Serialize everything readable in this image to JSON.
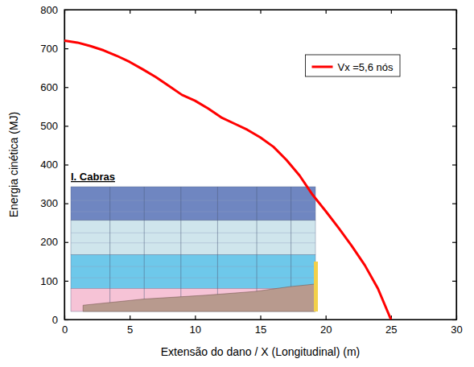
{
  "chart_data": {
    "type": "line",
    "x_label": "Extensão do dano / X (Longitudinal) (m)",
    "y_label": "Energia cinética (MJ)",
    "annotation": "I. Cabras",
    "x": [
      0,
      1,
      2,
      3,
      4,
      5,
      6,
      7,
      8,
      9,
      10,
      11,
      12,
      13,
      14,
      15,
      16,
      17,
      18,
      19,
      20,
      21,
      22,
      23,
      24,
      25
    ],
    "series": [
      {
        "name": "Vx =5,6 nós",
        "color": "#ff0000",
        "values": [
          720,
          715,
          706,
          695,
          681,
          665,
          646,
          626,
          603,
          580,
          565,
          545,
          522,
          506,
          490,
          470,
          446,
          412,
          372,
          322,
          280,
          236,
          190,
          140,
          80,
          0
        ]
      }
    ],
    "xlim": [
      0,
      30
    ],
    "xticks": [
      0,
      5,
      10,
      15,
      20,
      25,
      30
    ],
    "ylim": [
      0,
      800
    ],
    "yticks": [
      0,
      100,
      200,
      300,
      400,
      500,
      600,
      700,
      800
    ],
    "legend": "upper right",
    "grid": false
  }
}
